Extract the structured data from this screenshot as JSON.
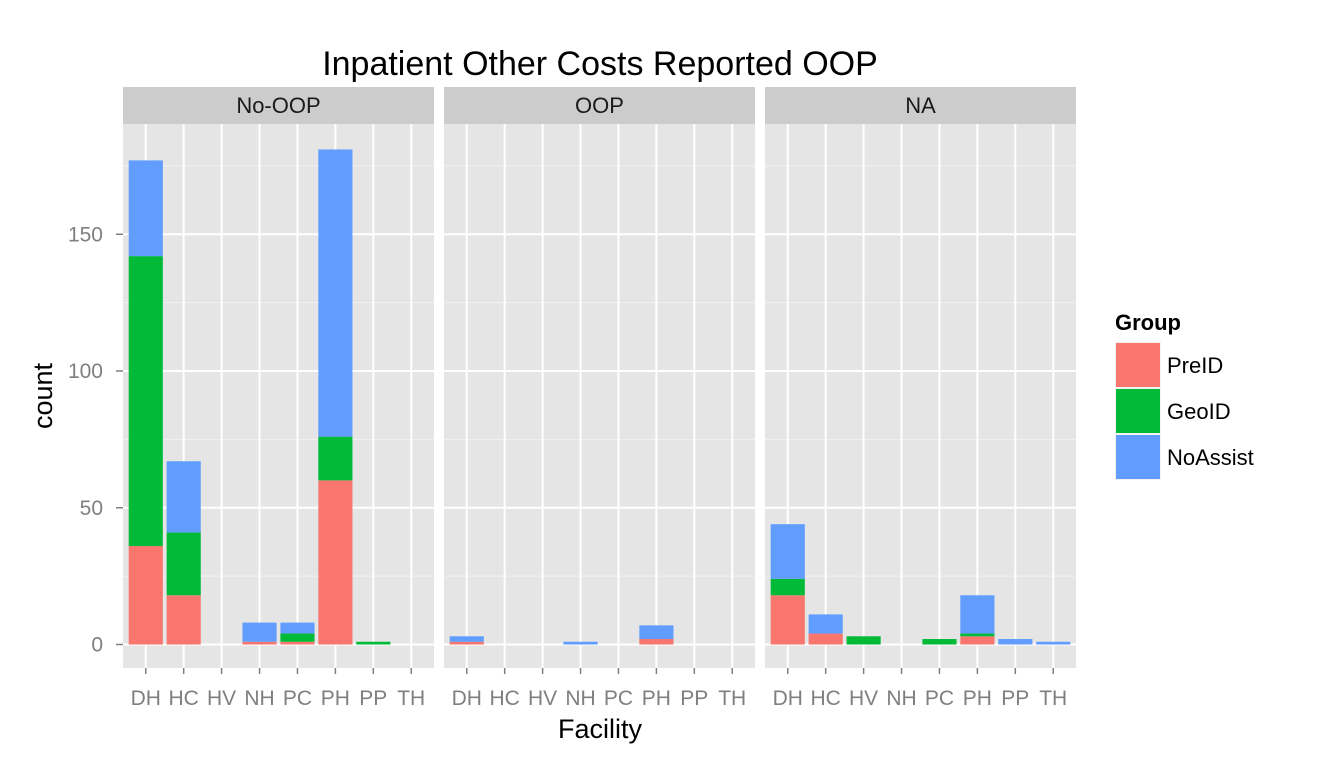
{
  "chart_data": {
    "type": "bar",
    "stacked": true,
    "title": "Inpatient Other Costs Reported OOP",
    "xlabel": "Facility",
    "ylabel": "count",
    "ylim": [
      0,
      190
    ],
    "yticks": [
      0,
      50,
      100,
      150
    ],
    "categories": [
      "DH",
      "HC",
      "HV",
      "NH",
      "PC",
      "PH",
      "PP",
      "TH"
    ],
    "legend": {
      "title": "Group",
      "placement": "right",
      "entries": [
        "PreID",
        "GeoID",
        "NoAssist"
      ]
    },
    "colors": {
      "PreID": "#F8766D",
      "GeoID": "#00BA38",
      "NoAssist": "#619CFF"
    },
    "grid": true,
    "panels": [
      {
        "label": "No-OOP",
        "series": [
          {
            "name": "PreID",
            "values": [
              36,
              18,
              0,
              1,
              1,
              60,
              0,
              0
            ]
          },
          {
            "name": "GeoID",
            "values": [
              106,
              23,
              0,
              0,
              3,
              16,
              1,
              0
            ]
          },
          {
            "name": "NoAssist",
            "values": [
              35,
              26,
              0,
              7,
              4,
              105,
              0,
              0
            ]
          }
        ]
      },
      {
        "label": "OOP",
        "series": [
          {
            "name": "PreID",
            "values": [
              1,
              0,
              0,
              0,
              0,
              2,
              0,
              0
            ]
          },
          {
            "name": "GeoID",
            "values": [
              0,
              0,
              0,
              0,
              0,
              0,
              0,
              0
            ]
          },
          {
            "name": "NoAssist",
            "values": [
              2,
              0,
              0,
              1,
              0,
              5,
              0,
              0
            ]
          }
        ]
      },
      {
        "label": "NA",
        "series": [
          {
            "name": "PreID",
            "values": [
              18,
              4,
              0,
              0,
              0,
              3,
              0,
              0
            ]
          },
          {
            "name": "GeoID",
            "values": [
              6,
              0,
              3,
              0,
              2,
              1,
              0,
              0
            ]
          },
          {
            "name": "NoAssist",
            "values": [
              20,
              7,
              0,
              0,
              0,
              14,
              2,
              1
            ]
          }
        ]
      }
    ]
  }
}
